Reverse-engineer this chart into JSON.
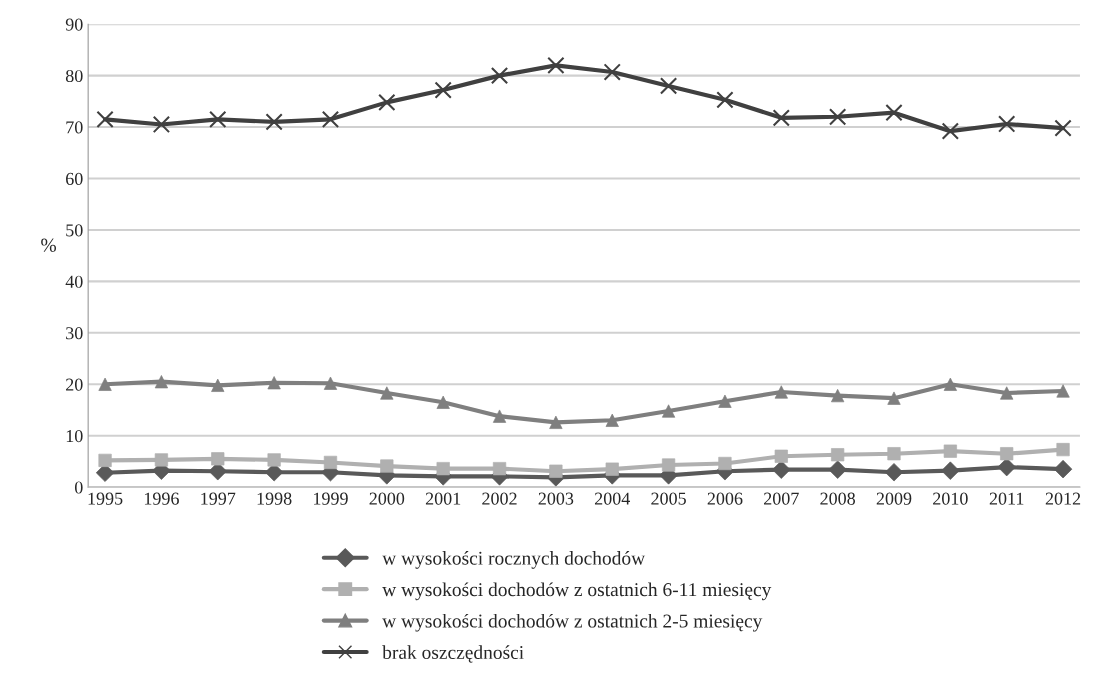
{
  "chart_data": {
    "type": "line",
    "ylabel": "%",
    "categories": [
      "1995",
      "1996",
      "1997",
      "1998",
      "1999",
      "2000",
      "2001",
      "2002",
      "2003",
      "2004",
      "2005",
      "2006",
      "2007",
      "2008",
      "2009",
      "2010",
      "2011",
      "2012"
    ],
    "series": [
      {
        "name": "w wysokości rocznych dochodów",
        "color": "#595959",
        "marker": "diamond",
        "values": [
          2.8,
          3.2,
          3.1,
          2.9,
          2.9,
          2.3,
          2.1,
          2.1,
          1.9,
          2.3,
          2.3,
          3.1,
          3.4,
          3.4,
          2.9,
          3.2,
          3.9,
          3.5
        ]
      },
      {
        "name": "w wysokości dochodów z ostatnich 6-11 miesięcy",
        "color": "#b0b0b0",
        "marker": "square",
        "values": [
          5.2,
          5.3,
          5.5,
          5.3,
          4.8,
          4.1,
          3.6,
          3.6,
          3.1,
          3.5,
          4.3,
          4.6,
          6,
          6.3,
          6.5,
          7,
          6.5,
          7.3
        ]
      },
      {
        "name": "w wysokości dochodów z ostatnich 2-5 miesięcy",
        "color": "#7f7f7f",
        "marker": "triangle",
        "values": [
          20,
          20.5,
          19.8,
          20.3,
          20.2,
          18.3,
          16.5,
          13.8,
          12.6,
          13,
          14.8,
          16.7,
          18.5,
          17.8,
          17.3,
          20,
          18.3,
          18.7
        ]
      },
      {
        "name": "brak oszczędności",
        "color": "#404040",
        "marker": "cross",
        "values": [
          71.5,
          70.5,
          71.5,
          71,
          71.5,
          74.8,
          77.2,
          80,
          82,
          80.7,
          78,
          75.3,
          71.8,
          72,
          72.8,
          69.2,
          70.6,
          69.8
        ]
      }
    ],
    "ylim": [
      0,
      90
    ],
    "yticks": [
      0,
      10,
      20,
      30,
      40,
      50,
      60,
      70,
      80,
      90
    ],
    "grid": "y",
    "legend": "bottom"
  }
}
